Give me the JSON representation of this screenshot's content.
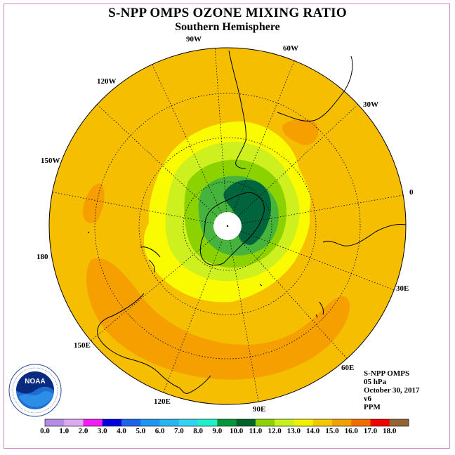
{
  "title": "S-NPP OMPS OZONE MIXING RATIO",
  "subtitle": "Southern Hemisphere",
  "longitude_labels": [
    "90W",
    "60W",
    "30W",
    "0",
    "30E",
    "60E",
    "90E",
    "120E",
    "150E",
    "180",
    "150W",
    "120W"
  ],
  "info": {
    "instrument": "S-NPP OMPS",
    "level": "05 hPa",
    "date": "October 30, 2017",
    "version": "v6",
    "units": "PPM"
  },
  "logo": {
    "text": "NOAA"
  },
  "colorbar": {
    "ticks": [
      "0.0",
      "1.0",
      "2.0",
      "3.0",
      "4.0",
      "5.0",
      "6.0",
      "7.0",
      "8.0",
      "9.0",
      "10.0",
      "11.0",
      "12.0",
      "13.0",
      "14.0",
      "15.0",
      "16.0",
      "17.0",
      "18.0"
    ],
    "colors": [
      "#b48ce6",
      "#dcaaf0",
      "#f01ef0",
      "#0000dc",
      "#1e64e6",
      "#1e96f0",
      "#28b4f0",
      "#32d2f0",
      "#1ef0c8",
      "#00963c",
      "#006428",
      "#8cd200",
      "#c8f01e",
      "#f0f000",
      "#f0c800",
      "#f0a000",
      "#f06e00",
      "#f00000",
      "#966432"
    ]
  },
  "map_colors": {
    "background": "#f5be00",
    "orange": "#f5a000",
    "yellow": "#fafa00",
    "yellow_green": "#cdf01e",
    "light_green": "#8cd200",
    "mid_green": "#46b43c",
    "dark_green": "#00643c"
  }
}
